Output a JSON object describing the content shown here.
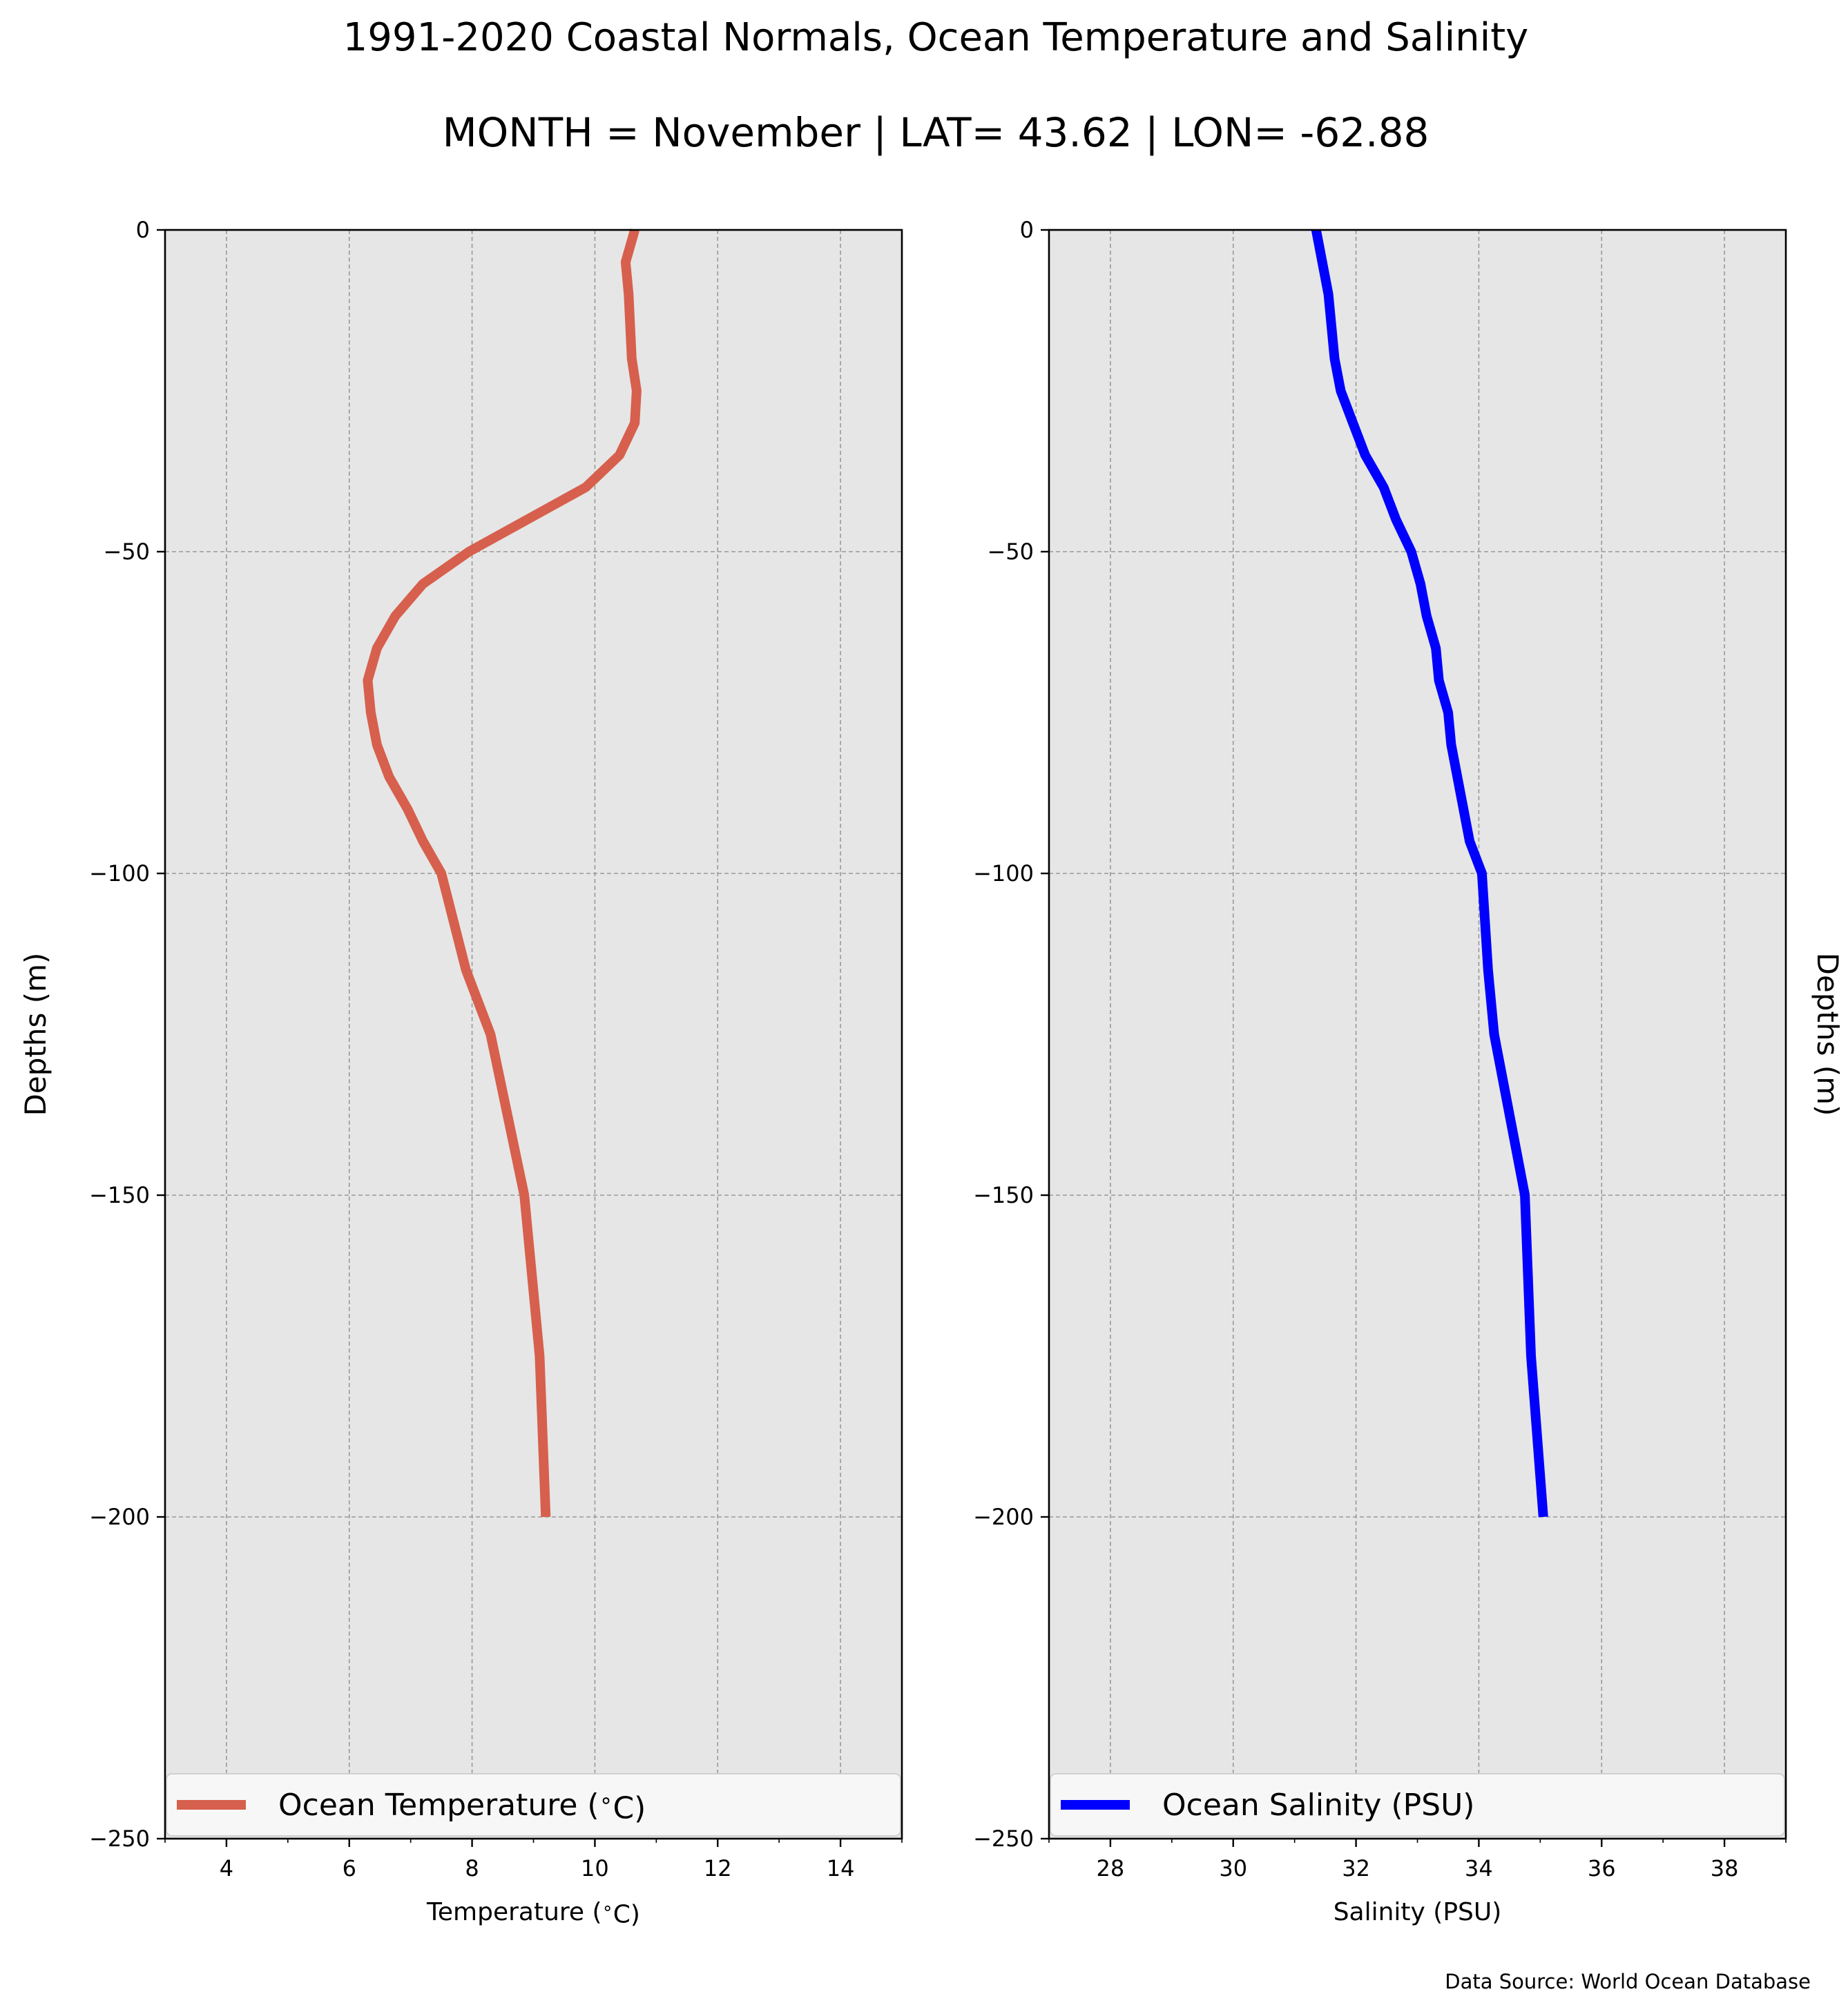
{
  "title": "1991-2020 Coastal Normals, Ocean Temperature and Salinity",
  "subtitle": "MONTH = November | LAT= 43.62 | LON= -62.88",
  "source_note": "Data Source: World Ocean Database",
  "colors": {
    "temperature_line": "#d6604d",
    "salinity_line": "#0000ff",
    "plot_background": "#e6e6e6",
    "grid": "#999999"
  },
  "chart_data": [
    {
      "type": "line",
      "orientation": "vertical-profile",
      "xlabel": "Temperature ($^\\circ$C)",
      "ylabel": "Depths (m)",
      "ylabel_side": "left",
      "xlim": [
        3,
        15
      ],
      "ylim": [
        -250,
        0
      ],
      "xticks": [
        4,
        6,
        8,
        10,
        12,
        14
      ],
      "xtick_labels": [
        "4",
        "6",
        "8",
        "10",
        "12",
        "14"
      ],
      "yticks": [
        0,
        -50,
        -100,
        -150,
        -200,
        -250
      ],
      "ytick_labels": [
        "0",
        "−50",
        "−100",
        "−150",
        "−200",
        "−250"
      ],
      "grid": true,
      "legend": "bottom",
      "legend_label": "Ocean Temperature ($^\\circ$C)",
      "series": [
        {
          "name": "Ocean Temperature ($^\\circ$C)",
          "color": "#d6604d",
          "x": [
            10.65,
            10.5,
            10.55,
            10.6,
            10.68,
            10.65,
            10.4,
            9.85,
            8.9,
            7.95,
            7.2,
            6.75,
            6.45,
            6.3,
            6.35,
            6.45,
            6.65,
            6.95,
            7.2,
            7.5,
            7.9,
            8.3,
            8.85,
            9.1,
            9.2
          ],
          "y": [
            0,
            -5,
            -10,
            -20,
            -25,
            -30,
            -35,
            -40,
            -45,
            -50,
            -55,
            -60,
            -65,
            -70,
            -75,
            -80,
            -85,
            -90,
            -95,
            -100,
            -115,
            -125,
            -150,
            -175,
            -200
          ]
        }
      ]
    },
    {
      "type": "line",
      "orientation": "vertical-profile",
      "xlabel": "Salinity (PSU)",
      "ylabel": "Depths (m)",
      "ylabel_side": "right",
      "xlim": [
        27,
        39
      ],
      "ylim": [
        -250,
        0
      ],
      "xticks": [
        28,
        30,
        32,
        34,
        36,
        38
      ],
      "xtick_labels": [
        "28",
        "30",
        "32",
        "34",
        "36",
        "38"
      ],
      "yticks": [
        0,
        -50,
        -100,
        -150,
        -200,
        -250
      ],
      "ytick_labels": [
        "0",
        "−50",
        "−100",
        "−150",
        "−200",
        "−250"
      ],
      "grid": true,
      "legend": "bottom",
      "legend_label": "Ocean Salinity (PSU)",
      "series": [
        {
          "name": "Ocean Salinity (PSU)",
          "color": "#0000ff",
          "x": [
            31.35,
            31.45,
            31.55,
            31.65,
            31.75,
            31.95,
            32.15,
            32.45,
            32.65,
            32.9,
            33.05,
            33.15,
            33.3,
            33.35,
            33.5,
            33.55,
            33.65,
            33.75,
            33.85,
            34.05,
            34.15,
            34.25,
            34.75,
            34.85,
            35.05
          ],
          "y": [
            0,
            -5,
            -10,
            -20,
            -25,
            -30,
            -35,
            -40,
            -45,
            -50,
            -55,
            -60,
            -65,
            -70,
            -75,
            -80,
            -85,
            -90,
            -95,
            -100,
            -115,
            -125,
            -150,
            -175,
            -200
          ]
        }
      ]
    }
  ]
}
